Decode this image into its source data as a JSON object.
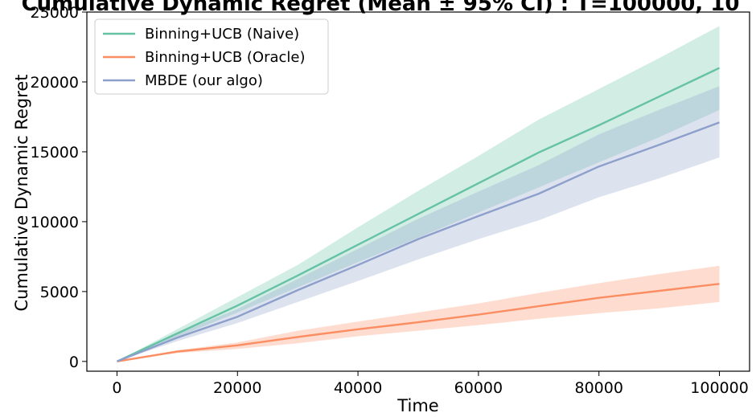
{
  "chart_data": {
    "type": "line",
    "title": "Cumulative Dynamic Regret (Mean ± 95% CI) : T=100000, 10",
    "xlabel": "Time",
    "ylabel": "Cumulative Dynamic Regret",
    "xlim": [
      -5000,
      105000
    ],
    "ylim": [
      -700,
      25000
    ],
    "xticks": [
      0,
      20000,
      40000,
      60000,
      80000,
      100000
    ],
    "yticks": [
      0,
      5000,
      10000,
      15000,
      20000,
      25000
    ],
    "grid": false,
    "legend_position": "top-left",
    "x": [
      0,
      10000,
      20000,
      30000,
      40000,
      50000,
      60000,
      70000,
      80000,
      90000,
      100000
    ],
    "series": [
      {
        "name": "Binning+UCB (Naive)",
        "color": "#66c2a5",
        "values": [
          0,
          2000,
          4000,
          6150,
          8350,
          10550,
          12750,
          14950,
          16900,
          18950,
          21000
        ],
        "lower": [
          0,
          1750,
          3500,
          5300,
          7100,
          8850,
          10650,
          12450,
          14250,
          16050,
          18000
        ],
        "upper": [
          0,
          2300,
          4600,
          6900,
          9600,
          12200,
          14700,
          17300,
          19500,
          21700,
          24000
        ]
      },
      {
        "name": "Binning+UCB (Oracle)",
        "color": "#fc8d62",
        "values": [
          0,
          700,
          1150,
          1750,
          2300,
          2800,
          3350,
          3950,
          4550,
          5050,
          5550
        ],
        "lower": [
          0,
          600,
          900,
          1300,
          1800,
          2200,
          2600,
          3050,
          3450,
          3800,
          4250
        ],
        "upper": [
          0,
          800,
          1350,
          2200,
          2850,
          3500,
          4150,
          4900,
          5600,
          6250,
          6850
        ]
      },
      {
        "name": "MBDE (our algo)",
        "color": "#8da0cb",
        "values": [
          0,
          1700,
          3200,
          5100,
          6900,
          8750,
          10400,
          12000,
          13950,
          15500,
          17100
        ],
        "lower": [
          0,
          1450,
          2750,
          4250,
          5750,
          7300,
          8750,
          10100,
          11750,
          13100,
          14600
        ],
        "upper": [
          0,
          2000,
          3750,
          5900,
          8050,
          10200,
          12150,
          14050,
          16250,
          18000,
          19700
        ]
      }
    ]
  }
}
